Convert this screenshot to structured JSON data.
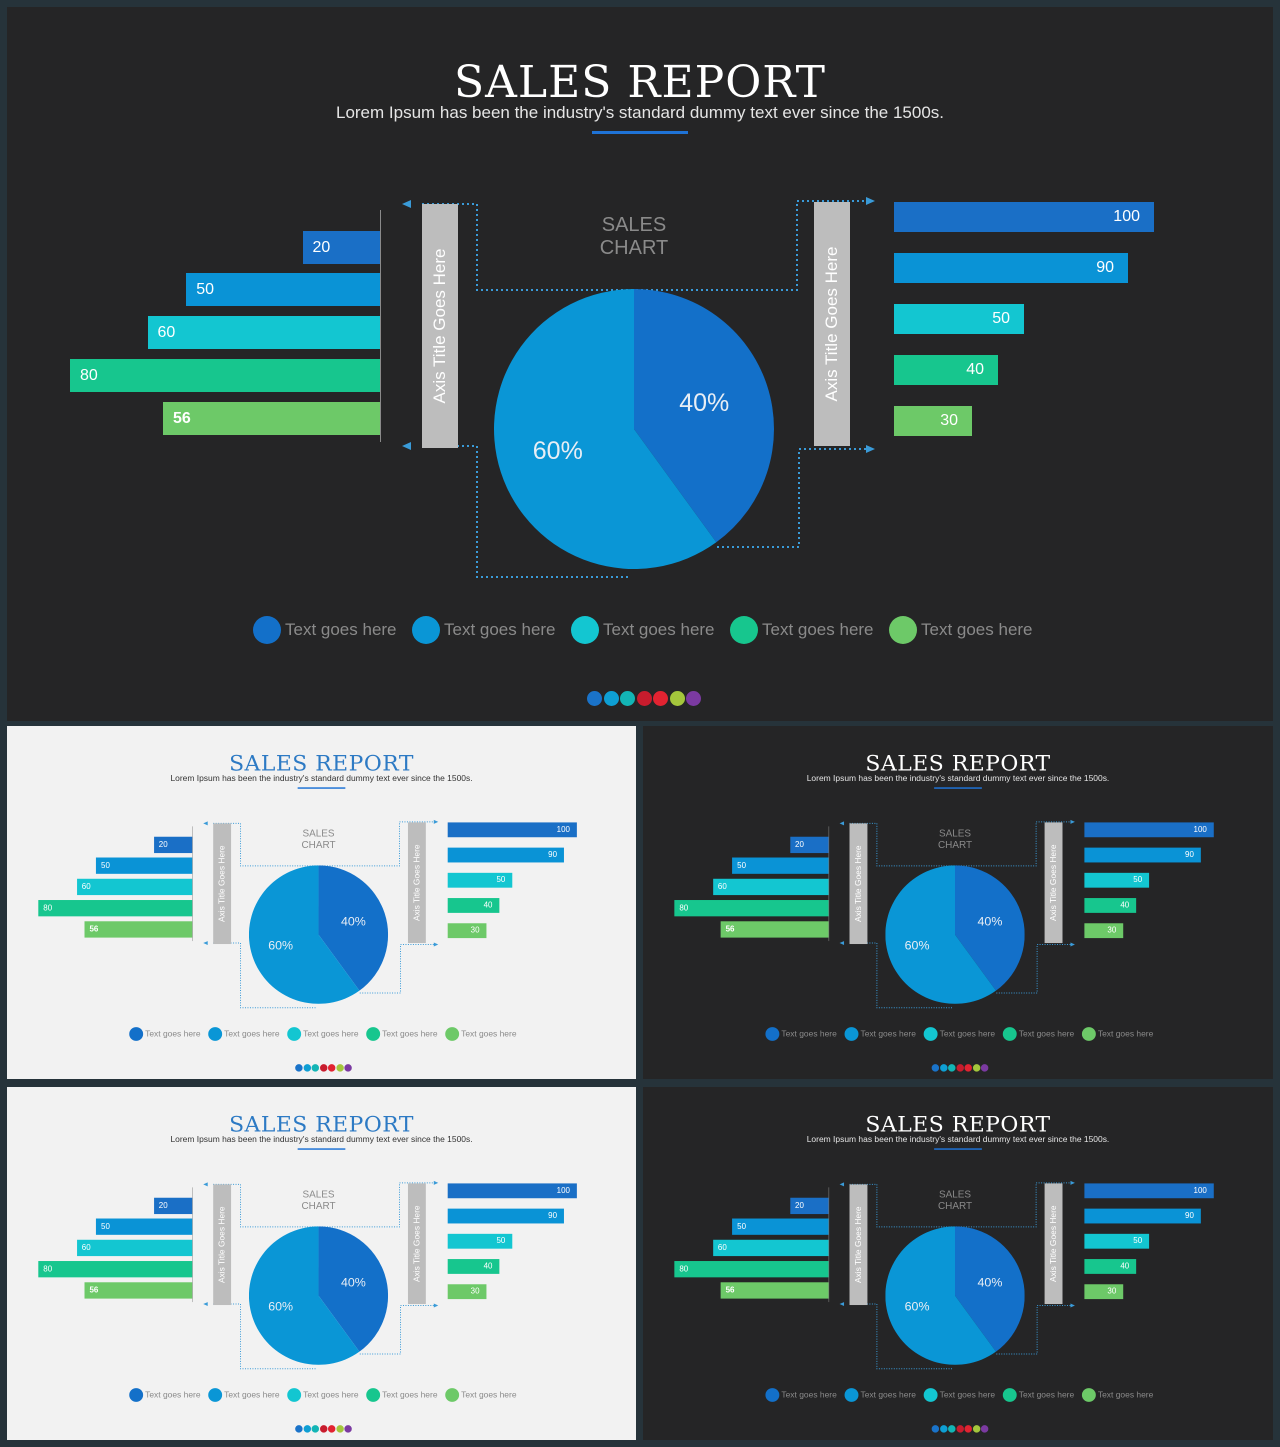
{
  "slides": [
    {
      "id": "main",
      "theme": "dark"
    },
    {
      "id": "thumb-1",
      "theme": "light"
    },
    {
      "id": "thumb-2",
      "theme": "dark"
    },
    {
      "id": "thumb-3",
      "theme": "light"
    },
    {
      "id": "thumb-4",
      "theme": "dark"
    }
  ],
  "content": {
    "title": "SALES REPORT",
    "subtitle": "Lorem Ipsum has been the industry's standard dummy text ever since the 1500s.",
    "chart_title": "SALES CHART",
    "axis_title": "Axis Title Goes Here",
    "legend_text": "Text goes here"
  },
  "chart_data": [
    {
      "type": "bar",
      "orientation": "horizontal",
      "direction": "leftward",
      "values": [
        20,
        50,
        60,
        80,
        56
      ],
      "colors": [
        "#1a6fc6",
        "#0a93d6",
        "#13c6d1",
        "#17c68e",
        "#6dc968"
      ]
    },
    {
      "type": "pie",
      "values": [
        40,
        60
      ],
      "labels": [
        "40%",
        "60%"
      ],
      "colors": [
        "#1370c9",
        "#0a96d6"
      ]
    },
    {
      "type": "bar",
      "orientation": "horizontal",
      "direction": "rightward",
      "values": [
        100,
        90,
        50,
        40,
        30
      ],
      "colors": [
        "#1a6fc6",
        "#0a93d6",
        "#13c6d1",
        "#17c68e",
        "#6dc968"
      ]
    }
  ],
  "legend": [
    {
      "color": "#1370c9"
    },
    {
      "color": "#0a96d6"
    },
    {
      "color": "#13c6d1"
    },
    {
      "color": "#17c68e"
    },
    {
      "color": "#6dc968"
    }
  ],
  "page_dots": [
    "#1a73c9",
    "#0e9fd4",
    "#13b5b5",
    "#c81c2d",
    "#e22331",
    "#a4c63c",
    "#7b3aa1"
  ]
}
